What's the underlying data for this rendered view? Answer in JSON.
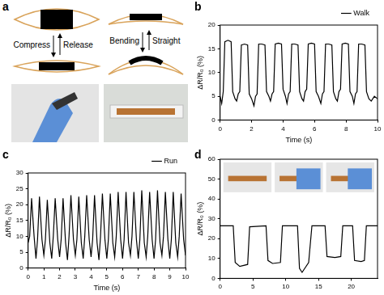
{
  "diagram": {
    "panel": "a",
    "left": {
      "up_label": "Compress",
      "down_label": "Release"
    },
    "right": {
      "up_label": "Bending",
      "down_label": "Straight"
    }
  },
  "chart_data": [
    {
      "type": "line",
      "panel": "b",
      "x_label": "Time (s)",
      "y_label": "ΔR/R₀ (%)",
      "xlim": [
        0,
        10
      ],
      "xticks": [
        0,
        2,
        4,
        6,
        8,
        10
      ],
      "ylim": [
        0,
        20
      ],
      "yticks": [
        0,
        5,
        10,
        15,
        20
      ],
      "grid": false,
      "legend": "top-right",
      "x": [
        0,
        0.1,
        0.2,
        0.3,
        0.5,
        0.7,
        0.8,
        0.95,
        1.05,
        1.15,
        1.25,
        1.35,
        1.55,
        1.75,
        1.85,
        2.0,
        2.15,
        2.25,
        2.35,
        2.45,
        2.65,
        2.85,
        2.95,
        3.1,
        3.2,
        3.3,
        3.4,
        3.5,
        3.7,
        3.9,
        4.0,
        4.15,
        4.25,
        4.35,
        4.45,
        4.55,
        4.75,
        4.95,
        5.05,
        5.2,
        5.3,
        5.4,
        5.5,
        5.6,
        5.8,
        6.0,
        6.1,
        6.25,
        6.4,
        6.5,
        6.6,
        6.7,
        6.9,
        7.1,
        7.2,
        7.35,
        7.45,
        7.55,
        7.65,
        7.75,
        7.95,
        8.15,
        8.25,
        8.4,
        8.5,
        8.6,
        8.7,
        8.8,
        9.0,
        9.2,
        9.3,
        9.45,
        9.6,
        9.8,
        10.0
      ],
      "series": [
        {
          "name": "Walk",
          "color": "#000000",
          "values": [
            5,
            3.5,
            6,
            16.5,
            16.8,
            16.5,
            6,
            4.5,
            4,
            5.5,
            6,
            15.8,
            16,
            15.8,
            5.5,
            4.5,
            3,
            5,
            5.5,
            16,
            16,
            15.8,
            6,
            5,
            4,
            5.5,
            6,
            16,
            16.2,
            16,
            6.5,
            5,
            3.5,
            5.5,
            6,
            16,
            16,
            15.8,
            6,
            4.5,
            4,
            6,
            6.5,
            16,
            16.2,
            16,
            6,
            5,
            3.5,
            5.5,
            6,
            16,
            16,
            15.8,
            6,
            4.5,
            4,
            6,
            6.5,
            16,
            16.2,
            16,
            6,
            5,
            3.5,
            5.5,
            6,
            16,
            16,
            15.8,
            6,
            4.5,
            4,
            5,
            4.5
          ]
        }
      ]
    },
    {
      "type": "line",
      "panel": "c",
      "x_label": "Time (s)",
      "y_label": "ΔR/R₀ (%)",
      "xlim": [
        0,
        10
      ],
      "xticks": [
        0,
        1,
        2,
        3,
        4,
        5,
        6,
        7,
        8,
        9,
        10
      ],
      "ylim": [
        0,
        30
      ],
      "yticks": [
        0,
        5,
        10,
        15,
        20,
        25,
        30
      ],
      "grid": false,
      "legend": "top-right",
      "x": [
        0,
        0.1,
        0.22,
        0.38,
        0.5,
        0.6,
        0.72,
        0.88,
        1.0,
        1.1,
        1.22,
        1.38,
        1.5,
        1.6,
        1.72,
        1.88,
        2.0,
        2.1,
        2.22,
        2.38,
        2.5,
        2.6,
        2.72,
        2.88,
        3.0,
        3.1,
        3.22,
        3.38,
        3.5,
        3.6,
        3.72,
        3.88,
        4.0,
        4.1,
        4.22,
        4.38,
        4.5,
        4.6,
        4.72,
        4.88,
        5.0,
        5.1,
        5.22,
        5.38,
        5.5,
        5.6,
        5.72,
        5.88,
        6.0,
        6.1,
        6.22,
        6.38,
        6.5,
        6.6,
        6.72,
        6.88,
        7.0,
        7.1,
        7.22,
        7.38,
        7.5,
        7.6,
        7.72,
        7.88,
        8.0,
        8.1,
        8.22,
        8.38,
        8.5,
        8.6,
        8.72,
        8.88,
        9.0,
        9.1,
        9.22,
        9.38,
        9.5,
        9.6,
        9.72,
        9.88,
        10.0
      ],
      "series": [
        {
          "name": "Run",
          "color": "#000000",
          "values": [
            8,
            10,
            22,
            10,
            3,
            9,
            22.5,
            9,
            4,
            9,
            21.5,
            8,
            3,
            10,
            22,
            9,
            3.5,
            9,
            22,
            8,
            2.5,
            10,
            23,
            9,
            4,
            9,
            22.5,
            8,
            3,
            10,
            23,
            9,
            3.5,
            9,
            23,
            8,
            2.5,
            10,
            23.5,
            9,
            3,
            9,
            23.5,
            8,
            3.5,
            10,
            24,
            9,
            3,
            9,
            24,
            8,
            4,
            10,
            24,
            9,
            3,
            9,
            24.5,
            8,
            3.5,
            10,
            24,
            9,
            3,
            9,
            24.5,
            8,
            4,
            10,
            24,
            9,
            3,
            9,
            24,
            8,
            3.5,
            10,
            23.5,
            9,
            4
          ]
        }
      ]
    },
    {
      "type": "line",
      "panel": "d",
      "y_label": "ΔR/R₀ (%)",
      "xlim": [
        0,
        24
      ],
      "xticks": [
        0,
        5,
        10,
        15,
        20
      ],
      "ylim": [
        0,
        60
      ],
      "yticks": [
        0,
        10,
        20,
        30,
        40,
        50,
        60
      ],
      "grid": false,
      "x": [
        0,
        2,
        2.3,
        3,
        4.2,
        4.5,
        7,
        7.3,
        8,
        9.2,
        9.5,
        11.8,
        12.1,
        12.5,
        13.5,
        14,
        16,
        16.3,
        17.5,
        18.4,
        18.7,
        20.2,
        20.5,
        21.5,
        22,
        22.3,
        24
      ],
      "series": [
        {
          "color": "#000000",
          "values": [
            26.5,
            26.5,
            8,
            6,
            7,
            26,
            26.5,
            9,
            7.5,
            8,
            26.5,
            26.5,
            5,
            3,
            8,
            26.5,
            26.5,
            11,
            10.5,
            11,
            26.5,
            26.5,
            9,
            8.5,
            9,
            26.5,
            26.5
          ]
        }
      ]
    }
  ]
}
